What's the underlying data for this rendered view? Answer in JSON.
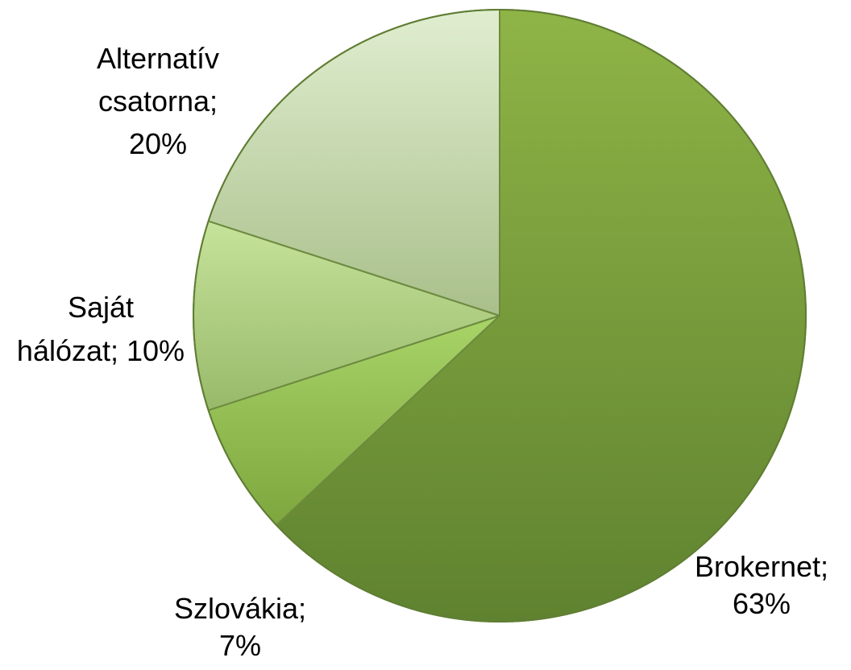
{
  "chart_data": {
    "type": "pie",
    "title": "",
    "start": "12 o'clock, clockwise",
    "slices": [
      {
        "label_lines": [
          "Brokernet;",
          "63%"
        ],
        "category": "Brokernet",
        "value": 63,
        "color": "#77a03a"
      },
      {
        "label_lines": [
          "Szlovákia;",
          "7%"
        ],
        "category": "Szlovákia",
        "value": 7,
        "color": "#8fba4a"
      },
      {
        "label_lines": [
          "Saját",
          "hálózat; 10%"
        ],
        "category": "Saját hálózat",
        "value": 10,
        "color": "#a9cc78"
      },
      {
        "label_lines": [
          "Alternatív",
          "csatorna;",
          "20%"
        ],
        "category": "Alternatív csatorna",
        "value": 20,
        "color": "#c3d9a8"
      }
    ]
  }
}
